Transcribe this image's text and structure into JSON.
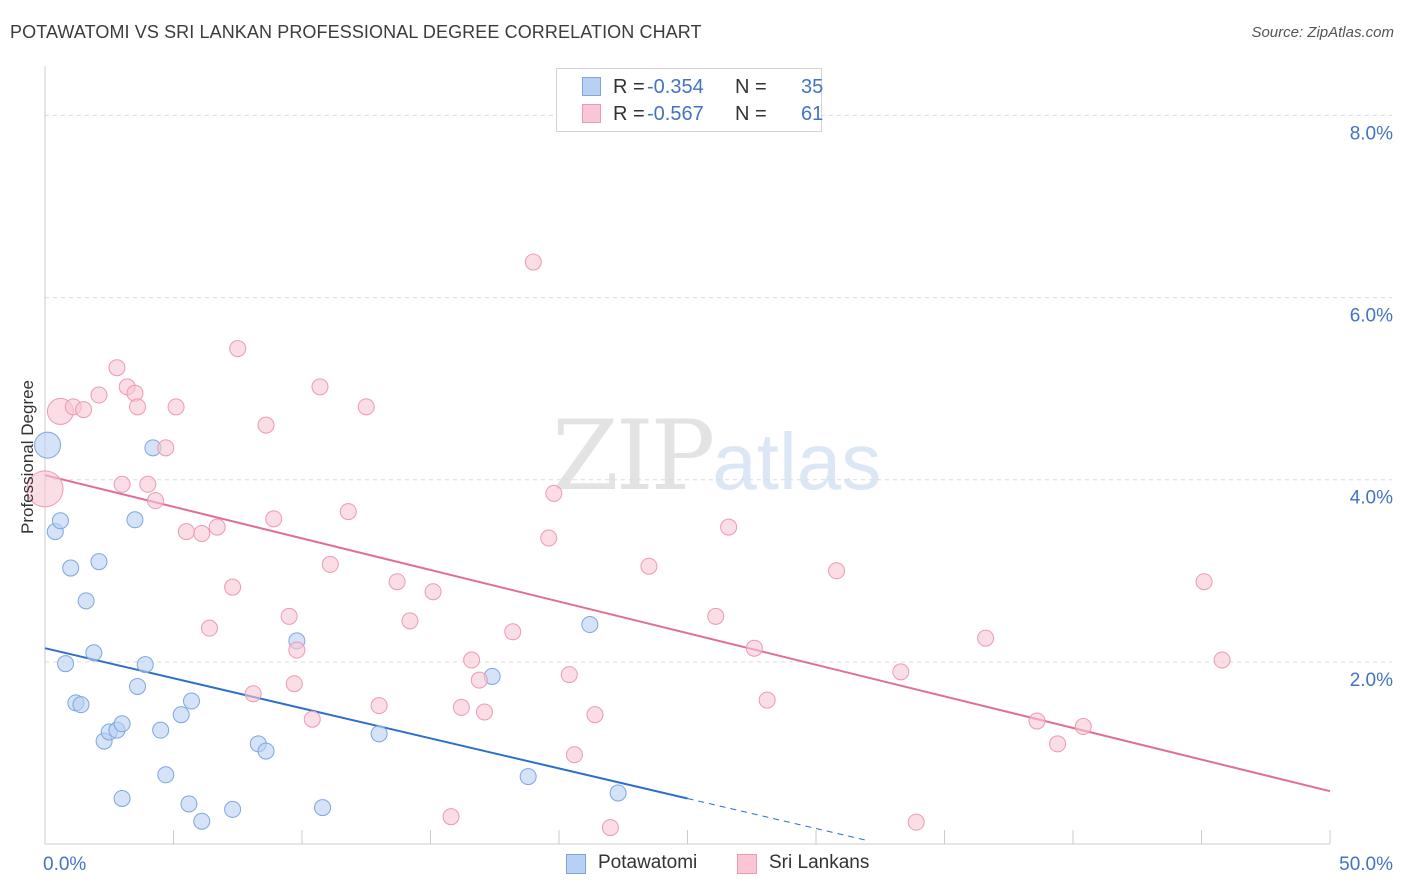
{
  "header": {
    "title": "POTAWATOMI VS SRI LANKAN PROFESSIONAL DEGREE CORRELATION CHART",
    "source": "Source: ZipAtlas.com"
  },
  "watermark": {
    "zip": "ZIP",
    "atlas": "atlas"
  },
  "stats": {
    "potawatomi": {
      "r_label": "R =",
      "r": "-0.354",
      "n_label": "N =",
      "n": "35"
    },
    "sri_lankans": {
      "r_label": "R =",
      "r": "-0.567",
      "n_label": "N =",
      "n": "61"
    }
  },
  "legend": {
    "potawatomi": "Potawatomi",
    "sri_lankans": "Sri Lankans"
  },
  "colors": {
    "potawatomi_fill": "#b8d0f2",
    "potawatomi_stroke": "#7ea6de",
    "potawatomi_line": "#2e6fcc",
    "sri_fill": "#f8c6d4",
    "sri_stroke": "#ec9ab4",
    "sri_line": "#e06f97",
    "axis_text": "#4472c4",
    "grid": "#dcdcdc"
  },
  "chart_data": {
    "type": "scatter",
    "title": "POTAWATOMI VS SRI LANKAN PROFESSIONAL DEGREE CORRELATION CHART",
    "xlabel": "",
    "ylabel": "Professional Degree",
    "xlim": [
      0,
      50
    ],
    "ylim": [
      0,
      8.4
    ],
    "x_tick_labels": [
      "0.0%",
      "50.0%"
    ],
    "y_ticks": [
      2,
      4,
      6,
      8
    ],
    "y_tick_labels": [
      "2.0%",
      "4.0%",
      "6.0%",
      "8.0%"
    ],
    "grid": "horizontal dashed",
    "series": [
      {
        "name": "Potawatomi",
        "r": -0.354,
        "n": 35,
        "trend": {
          "x0": 0,
          "y0": 2.15,
          "x1": 25,
          "y1": 0.5,
          "dashed_to_x": 32
        },
        "points": [
          {
            "x": 0.1,
            "y": 4.38,
            "big": 1
          },
          {
            "x": 0.4,
            "y": 3.43
          },
          {
            "x": 0.6,
            "y": 3.55
          },
          {
            "x": 1.0,
            "y": 3.03
          },
          {
            "x": 2.1,
            "y": 3.1
          },
          {
            "x": 1.6,
            "y": 2.67
          },
          {
            "x": 1.9,
            "y": 2.1
          },
          {
            "x": 0.8,
            "y": 1.98
          },
          {
            "x": 1.2,
            "y": 1.55
          },
          {
            "x": 1.4,
            "y": 1.53
          },
          {
            "x": 2.3,
            "y": 1.13
          },
          {
            "x": 2.5,
            "y": 1.23
          },
          {
            "x": 2.8,
            "y": 1.25
          },
          {
            "x": 3.0,
            "y": 1.32
          },
          {
            "x": 3.0,
            "y": 0.5
          },
          {
            "x": 3.5,
            "y": 3.56
          },
          {
            "x": 3.6,
            "y": 1.73
          },
          {
            "x": 3.9,
            "y": 1.97
          },
          {
            "x": 4.2,
            "y": 4.35
          },
          {
            "x": 4.5,
            "y": 1.25
          },
          {
            "x": 4.7,
            "y": 0.76
          },
          {
            "x": 5.3,
            "y": 1.42
          },
          {
            "x": 5.6,
            "y": 0.44
          },
          {
            "x": 5.7,
            "y": 1.57
          },
          {
            "x": 6.1,
            "y": 0.25
          },
          {
            "x": 7.3,
            "y": 0.38
          },
          {
            "x": 8.3,
            "y": 1.1
          },
          {
            "x": 8.6,
            "y": 1.02
          },
          {
            "x": 9.8,
            "y": 2.23
          },
          {
            "x": 10.8,
            "y": 0.4
          },
          {
            "x": 13.0,
            "y": 1.21
          },
          {
            "x": 17.4,
            "y": 1.84
          },
          {
            "x": 18.8,
            "y": 0.74
          },
          {
            "x": 21.2,
            "y": 2.41
          },
          {
            "x": 22.3,
            "y": 0.56
          }
        ]
      },
      {
        "name": "Sri Lankans",
        "r": -0.567,
        "n": 61,
        "trend": {
          "x0": 0,
          "y0": 4.05,
          "x1": 50,
          "y1": 0.58
        },
        "points": [
          {
            "x": 0.0,
            "y": 3.9,
            "big": 2
          },
          {
            "x": 0.6,
            "y": 4.75,
            "big": 1
          },
          {
            "x": 1.1,
            "y": 4.8
          },
          {
            "x": 1.5,
            "y": 4.77
          },
          {
            "x": 2.1,
            "y": 4.93
          },
          {
            "x": 2.8,
            "y": 5.23
          },
          {
            "x": 3.0,
            "y": 3.95
          },
          {
            "x": 3.2,
            "y": 5.02
          },
          {
            "x": 3.5,
            "y": 4.95
          },
          {
            "x": 3.6,
            "y": 4.8
          },
          {
            "x": 4.0,
            "y": 3.95
          },
          {
            "x": 4.3,
            "y": 3.77
          },
          {
            "x": 4.7,
            "y": 4.35
          },
          {
            "x": 5.1,
            "y": 4.8
          },
          {
            "x": 5.5,
            "y": 3.43
          },
          {
            "x": 6.1,
            "y": 3.41
          },
          {
            "x": 6.4,
            "y": 2.37
          },
          {
            "x": 6.7,
            "y": 3.48
          },
          {
            "x": 7.3,
            "y": 2.82
          },
          {
            "x": 7.5,
            "y": 5.44
          },
          {
            "x": 8.1,
            "y": 1.65
          },
          {
            "x": 8.6,
            "y": 4.6
          },
          {
            "x": 8.9,
            "y": 3.57
          },
          {
            "x": 9.5,
            "y": 2.5
          },
          {
            "x": 9.7,
            "y": 1.76
          },
          {
            "x": 9.8,
            "y": 2.13
          },
          {
            "x": 10.4,
            "y": 1.37
          },
          {
            "x": 10.7,
            "y": 5.02
          },
          {
            "x": 11.1,
            "y": 3.07
          },
          {
            "x": 11.8,
            "y": 3.65
          },
          {
            "x": 12.5,
            "y": 4.8
          },
          {
            "x": 13.0,
            "y": 1.52
          },
          {
            "x": 13.7,
            "y": 2.88
          },
          {
            "x": 14.2,
            "y": 2.45
          },
          {
            "x": 15.1,
            "y": 2.77
          },
          {
            "x": 15.8,
            "y": 0.3
          },
          {
            "x": 16.2,
            "y": 1.5
          },
          {
            "x": 16.6,
            "y": 2.02
          },
          {
            "x": 16.9,
            "y": 1.8
          },
          {
            "x": 17.1,
            "y": 1.45
          },
          {
            "x": 18.2,
            "y": 2.33
          },
          {
            "x": 19.0,
            "y": 6.39
          },
          {
            "x": 19.6,
            "y": 3.36
          },
          {
            "x": 19.8,
            "y": 3.85
          },
          {
            "x": 20.4,
            "y": 1.86
          },
          {
            "x": 20.6,
            "y": 0.98
          },
          {
            "x": 21.4,
            "y": 1.42
          },
          {
            "x": 22.0,
            "y": 0.18
          },
          {
            "x": 23.5,
            "y": 3.05
          },
          {
            "x": 26.1,
            "y": 2.5
          },
          {
            "x": 26.6,
            "y": 3.48
          },
          {
            "x": 27.6,
            "y": 2.15
          },
          {
            "x": 28.1,
            "y": 1.58
          },
          {
            "x": 30.8,
            "y": 3.0
          },
          {
            "x": 33.3,
            "y": 1.89
          },
          {
            "x": 33.9,
            "y": 0.24
          },
          {
            "x": 36.6,
            "y": 2.26
          },
          {
            "x": 38.6,
            "y": 1.35
          },
          {
            "x": 39.4,
            "y": 1.1
          },
          {
            "x": 40.4,
            "y": 1.29
          },
          {
            "x": 45.1,
            "y": 2.88
          },
          {
            "x": 45.8,
            "y": 2.02
          }
        ]
      }
    ]
  }
}
